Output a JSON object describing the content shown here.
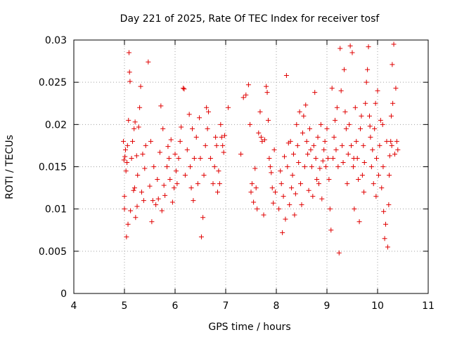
{
  "chart_data": {
    "type": "scatter",
    "title": "Day 221 of 2025, Rate Of TEC Index for receiver tosf",
    "xlabel": "GPS time / hours",
    "ylabel": "ROTI / TECUs",
    "xlim": [
      4,
      11
    ],
    "ylim": [
      0,
      0.03
    ],
    "xticks": [
      4,
      5,
      6,
      7,
      8,
      9,
      10,
      11
    ],
    "xtick_labels": [
      "4",
      "5",
      "6",
      "7",
      "8",
      "9",
      "10",
      "11"
    ],
    "yticks": [
      0,
      0.005,
      0.01,
      0.015,
      0.02,
      0.025,
      0.03
    ],
    "ytick_labels": [
      "0",
      "0.005",
      "0.01",
      "0.015",
      "0.02",
      "0.025",
      "0.03"
    ],
    "grid": true,
    "marker": "plus",
    "color": "#e00000",
    "series": [
      {
        "points": [
          [
            4.98,
            0.018
          ],
          [
            4.99,
            0.0158
          ],
          [
            5.0,
            0.0115
          ],
          [
            5.0,
            0.01
          ],
          [
            5.01,
            0.0162
          ],
          [
            5.02,
            0.017
          ],
          [
            5.03,
            0.0145
          ],
          [
            5.04,
            0.0067
          ],
          [
            5.05,
            0.0155
          ],
          [
            5.06,
            0.0175
          ],
          [
            5.07,
            0.0082
          ],
          [
            5.08,
            0.0205
          ],
          [
            5.09,
            0.0285
          ],
          [
            5.1,
            0.0262
          ],
          [
            5.11,
            0.0251
          ],
          [
            5.12,
            0.0098
          ],
          [
            5.14,
            0.016
          ],
          [
            5.16,
            0.018
          ],
          [
            5.18,
            0.0122
          ],
          [
            5.19,
            0.0195
          ],
          [
            5.2,
            0.0125
          ],
          [
            5.21,
            0.0203
          ],
          [
            5.22,
            0.009
          ],
          [
            5.24,
            0.0163
          ],
          [
            5.25,
            0.0103
          ],
          [
            5.26,
            0.014
          ],
          [
            5.28,
            0.0197
          ],
          [
            5.3,
            0.022
          ],
          [
            5.32,
            0.0245
          ],
          [
            5.34,
            0.012
          ],
          [
            5.36,
            0.0165
          ],
          [
            5.38,
            0.011
          ],
          [
            5.4,
            0.0148
          ],
          [
            5.42,
            0.0175
          ],
          [
            5.47,
            0.0274
          ],
          [
            5.5,
            0.0127
          ],
          [
            5.52,
            0.018
          ],
          [
            5.54,
            0.0085
          ],
          [
            5.56,
            0.011
          ],
          [
            5.58,
            0.015
          ],
          [
            5.62,
            0.0105
          ],
          [
            5.65,
            0.0135
          ],
          [
            5.67,
            0.0112
          ],
          [
            5.7,
            0.0167
          ],
          [
            5.72,
            0.0222
          ],
          [
            5.74,
            0.0098
          ],
          [
            5.76,
            0.0195
          ],
          [
            5.78,
            0.0128
          ],
          [
            5.8,
            0.0116
          ],
          [
            5.84,
            0.015
          ],
          [
            5.86,
            0.0174
          ],
          [
            5.88,
            0.016
          ],
          [
            5.9,
            0.0135
          ],
          [
            5.92,
            0.0182
          ],
          [
            5.95,
            0.0108
          ],
          [
            5.98,
            0.0125
          ],
          [
            6.0,
            0.0165
          ],
          [
            6.02,
            0.0145
          ],
          [
            6.04,
            0.013
          ],
          [
            6.07,
            0.016
          ],
          [
            6.1,
            0.018
          ],
          [
            6.12,
            0.0197
          ],
          [
            6.16,
            0.0243
          ],
          [
            6.18,
            0.0242
          ],
          [
            6.2,
            0.014
          ],
          [
            6.24,
            0.017
          ],
          [
            6.28,
            0.0212
          ],
          [
            6.3,
            0.015
          ],
          [
            6.32,
            0.0125
          ],
          [
            6.34,
            0.0195
          ],
          [
            6.36,
            0.011
          ],
          [
            6.38,
            0.016
          ],
          [
            6.42,
            0.0185
          ],
          [
            6.45,
            0.013
          ],
          [
            6.48,
            0.0208
          ],
          [
            6.5,
            0.016
          ],
          [
            6.52,
            0.0067
          ],
          [
            6.55,
            0.009
          ],
          [
            6.57,
            0.014
          ],
          [
            6.6,
            0.0175
          ],
          [
            6.62,
            0.022
          ],
          [
            6.64,
            0.0195
          ],
          [
            6.66,
            0.0215
          ],
          [
            6.7,
            0.016
          ],
          [
            6.75,
            0.013
          ],
          [
            6.78,
            0.015
          ],
          [
            6.8,
            0.0185
          ],
          [
            6.82,
            0.0175
          ],
          [
            6.84,
            0.012
          ],
          [
            6.86,
            0.0145
          ],
          [
            6.88,
            0.013
          ],
          [
            6.9,
            0.02
          ],
          [
            6.92,
            0.0185
          ],
          [
            6.94,
            0.0175
          ],
          [
            6.96,
            0.0167
          ],
          [
            6.98,
            0.0187
          ],
          [
            7.05,
            0.022
          ],
          [
            7.3,
            0.0165
          ],
          [
            7.35,
            0.0232
          ],
          [
            7.4,
            0.0235
          ],
          [
            7.45,
            0.0247
          ],
          [
            7.48,
            0.02
          ],
          [
            7.5,
            0.012
          ],
          [
            7.52,
            0.013
          ],
          [
            7.55,
            0.0108
          ],
          [
            7.58,
            0.0148
          ],
          [
            7.6,
            0.0125
          ],
          [
            7.62,
            0.01
          ],
          [
            7.65,
            0.019
          ],
          [
            7.68,
            0.0215
          ],
          [
            7.7,
            0.0185
          ],
          [
            7.72,
            0.018
          ],
          [
            7.75,
            0.0093
          ],
          [
            7.77,
            0.0182
          ],
          [
            7.8,
            0.0245
          ],
          [
            7.82,
            0.0238
          ],
          [
            7.84,
            0.0205
          ],
          [
            7.86,
            0.016
          ],
          [
            7.88,
            0.015
          ],
          [
            7.9,
            0.0143
          ],
          [
            7.92,
            0.0125
          ],
          [
            7.94,
            0.0107
          ],
          [
            7.96,
            0.017
          ],
          [
            7.98,
            0.012
          ],
          [
            8.05,
            0.01
          ],
          [
            8.08,
            0.0145
          ],
          [
            8.1,
            0.013
          ],
          [
            8.12,
            0.0072
          ],
          [
            8.14,
            0.0115
          ],
          [
            8.16,
            0.0162
          ],
          [
            8.18,
            0.0088
          ],
          [
            8.2,
            0.0258
          ],
          [
            8.22,
            0.015
          ],
          [
            8.24,
            0.0178
          ],
          [
            8.26,
            0.0105
          ],
          [
            8.28,
            0.018
          ],
          [
            8.3,
            0.0125
          ],
          [
            8.32,
            0.014
          ],
          [
            8.34,
            0.0165
          ],
          [
            8.36,
            0.0093
          ],
          [
            8.38,
            0.0118
          ],
          [
            8.4,
            0.02
          ],
          [
            8.42,
            0.0175
          ],
          [
            8.44,
            0.0155
          ],
          [
            8.46,
            0.0215
          ],
          [
            8.48,
            0.013
          ],
          [
            8.5,
            0.0105
          ],
          [
            8.52,
            0.019
          ],
          [
            8.54,
            0.021
          ],
          [
            8.56,
            0.015
          ],
          [
            8.58,
            0.0223
          ],
          [
            8.6,
            0.018
          ],
          [
            8.62,
            0.0165
          ],
          [
            8.64,
            0.0122
          ],
          [
            8.66,
            0.0195
          ],
          [
            8.68,
            0.017
          ],
          [
            8.7,
            0.015
          ],
          [
            8.72,
            0.0115
          ],
          [
            8.74,
            0.0175
          ],
          [
            8.76,
            0.0238
          ],
          [
            8.78,
            0.016
          ],
          [
            8.8,
            0.0135
          ],
          [
            8.82,
            0.0185
          ],
          [
            8.84,
            0.013
          ],
          [
            8.86,
            0.0148
          ],
          [
            8.88,
            0.02
          ],
          [
            8.9,
            0.0112
          ],
          [
            8.92,
            0.0157
          ],
          [
            8.94,
            0.017
          ],
          [
            8.96,
            0.018
          ],
          [
            8.98,
            0.015
          ],
          [
            9.0,
            0.0195
          ],
          [
            9.02,
            0.016
          ],
          [
            9.04,
            0.0135
          ],
          [
            9.06,
            0.01
          ],
          [
            9.08,
            0.0075
          ],
          [
            9.1,
            0.0243
          ],
          [
            9.12,
            0.016
          ],
          [
            9.14,
            0.0185
          ],
          [
            9.16,
            0.0205
          ],
          [
            9.18,
            0.017
          ],
          [
            9.2,
            0.022
          ],
          [
            9.22,
            0.015
          ],
          [
            9.24,
            0.0048
          ],
          [
            9.26,
            0.029
          ],
          [
            9.28,
            0.024
          ],
          [
            9.3,
            0.0175
          ],
          [
            9.32,
            0.0155
          ],
          [
            9.34,
            0.0265
          ],
          [
            9.36,
            0.0215
          ],
          [
            9.38,
            0.0195
          ],
          [
            9.4,
            0.013
          ],
          [
            9.42,
            0.0165
          ],
          [
            9.44,
            0.02
          ],
          [
            9.46,
            0.0293
          ],
          [
            9.48,
            0.0175
          ],
          [
            9.5,
            0.0285
          ],
          [
            9.52,
            0.015
          ],
          [
            9.54,
            0.01
          ],
          [
            9.56,
            0.022
          ],
          [
            9.58,
            0.018
          ],
          [
            9.6,
            0.016
          ],
          [
            9.62,
            0.0135
          ],
          [
            9.64,
            0.0085
          ],
          [
            9.66,
            0.0195
          ],
          [
            9.68,
            0.021
          ],
          [
            9.7,
            0.014
          ],
          [
            9.72,
            0.0175
          ],
          [
            9.74,
            0.0155
          ],
          [
            9.76,
            0.0225
          ],
          [
            9.78,
            0.025
          ],
          [
            9.8,
            0.0265
          ],
          [
            9.82,
            0.0292
          ],
          [
            9.84,
            0.021
          ],
          [
            9.86,
            0.0185
          ],
          [
            9.88,
            0.015
          ],
          [
            9.9,
            0.017
          ],
          [
            9.92,
            0.013
          ],
          [
            9.94,
            0.0195
          ],
          [
            9.96,
            0.0225
          ],
          [
            9.98,
            0.016
          ],
          [
            10.0,
            0.024
          ],
          [
            10.02,
            0.014
          ],
          [
            10.04,
            0.0175
          ],
          [
            10.06,
            0.0205
          ],
          [
            10.08,
            0.0125
          ],
          [
            10.1,
            0.02
          ],
          [
            10.12,
            0.0097
          ],
          [
            10.14,
            0.0065
          ],
          [
            10.16,
            0.0082
          ],
          [
            10.18,
            0.018
          ],
          [
            10.2,
            0.0055
          ],
          [
            10.22,
            0.0105
          ],
          [
            10.24,
            0.0163
          ],
          [
            10.26,
            0.018
          ],
          [
            10.28,
            0.0175
          ],
          [
            10.3,
            0.0225
          ],
          [
            10.32,
            0.0295
          ],
          [
            10.34,
            0.0165
          ],
          [
            10.36,
            0.0243
          ],
          [
            10.38,
            0.018
          ],
          [
            10.4,
            0.017
          ],
          [
            10.29,
            0.0271
          ],
          [
            10.27,
            0.021
          ],
          [
            10.23,
            0.014
          ],
          [
            10.11,
            0.015
          ],
          [
            9.97,
            0.0115
          ],
          [
            9.85,
            0.0198
          ],
          [
            9.73,
            0.012
          ],
          [
            9.53,
            0.016
          ]
        ]
      }
    ]
  }
}
